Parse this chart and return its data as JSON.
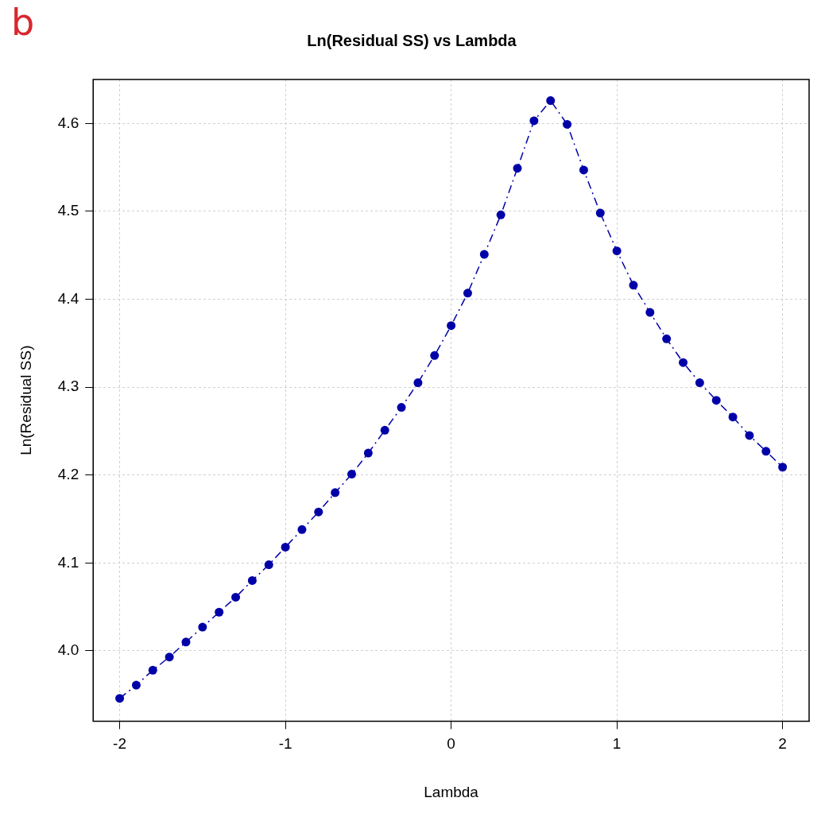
{
  "chart_data": {
    "type": "line",
    "title": "Ln(Residual SS) vs Lambda",
    "xlabel": "Lambda",
    "ylabel": "Ln(Residual SS)",
    "annotations": [
      "b"
    ],
    "x": [
      -2,
      -1.9,
      -1.8,
      -1.7,
      -1.6,
      -1.5,
      -1.4,
      -1.3,
      -1.2,
      -1.1,
      -1,
      -0.9,
      -0.8,
      -0.7,
      -0.6,
      -0.5,
      -0.4,
      -0.3,
      -0.2,
      -0.1,
      0,
      0.1,
      0.2,
      0.3,
      0.4,
      0.5,
      0.6,
      0.7,
      0.8,
      0.9,
      1,
      1.1,
      1.2,
      1.3,
      1.4,
      1.5,
      1.6,
      1.7,
      1.8,
      1.9,
      2
    ],
    "series": [
      {
        "color": "#0000a8",
        "values": [
          3.946,
          3.961,
          3.978,
          3.993,
          4.01,
          4.027,
          4.044,
          4.061,
          4.08,
          4.098,
          4.118,
          4.138,
          4.158,
          4.18,
          4.201,
          4.225,
          4.251,
          4.277,
          4.305,
          4.336,
          4.37,
          4.407,
          4.451,
          4.496,
          4.549,
          4.603,
          4.626,
          4.599,
          4.547,
          4.498,
          4.455,
          4.416,
          4.385,
          4.355,
          4.328,
          4.305,
          4.285,
          4.266,
          4.245,
          4.227,
          4.209
        ]
      }
    ],
    "xlim": [
      -2.16,
      2.16
    ],
    "ylim": [
      3.92,
      4.65
    ],
    "xticks": [
      -2,
      -1,
      0,
      1,
      2
    ],
    "yticks": [
      {
        "value": 4,
        "label": "4.0"
      },
      4.1,
      4.2,
      4.3,
      4.4,
      4.5,
      4.6
    ],
    "grid": true,
    "legend": false,
    "marker": "circle",
    "line_style": "dashed"
  }
}
